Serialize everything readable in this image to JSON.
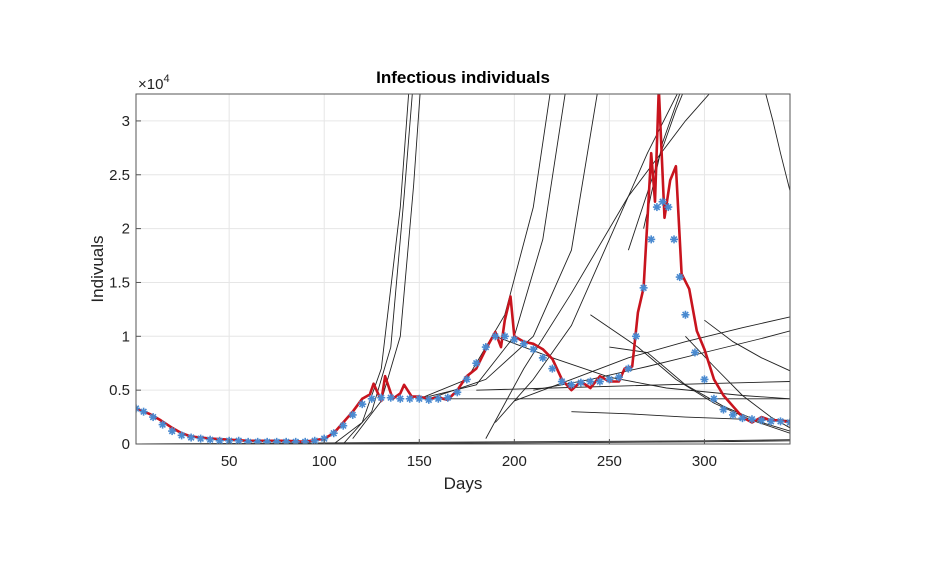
{
  "chart_data": {
    "type": "line",
    "title": "Infectious individuals",
    "xlabel": "Days",
    "ylabel": "Indivuals",
    "y_exponent_label": "×10",
    "y_exponent_power": "4",
    "xlim": [
      1,
      345
    ],
    "ylim": [
      0,
      3.25
    ],
    "x_ticks": [
      50,
      100,
      150,
      200,
      250,
      300
    ],
    "x_tick_labels": [
      "50",
      "100",
      "150",
      "200",
      "250",
      "300"
    ],
    "y_ticks": [
      0,
      0.5,
      1,
      1.5,
      2,
      2.5,
      3
    ],
    "y_tick_labels": [
      "0",
      "0.5",
      "1",
      "1.5",
      "2",
      "2.5",
      "3"
    ],
    "grid": true,
    "series": [
      {
        "style": "line",
        "color": "#c8141e",
        "x": [
          1,
          8,
          14,
          20,
          25,
          30,
          40,
          50,
          60,
          70,
          80,
          90,
          100,
          105,
          110,
          115,
          120,
          124,
          126,
          130,
          132,
          136,
          140,
          142,
          146,
          150,
          155,
          160,
          165,
          170,
          175,
          180,
          185,
          190,
          193,
          195,
          198,
          200,
          205,
          210,
          215,
          220,
          225,
          230,
          235,
          240,
          245,
          250,
          255,
          258,
          262,
          265,
          268,
          272,
          274,
          276,
          279,
          282,
          285,
          288,
          292,
          296,
          300,
          305,
          310,
          315,
          320,
          325,
          330,
          335,
          340,
          345
        ],
        "y": [
          0.33,
          0.28,
          0.22,
          0.15,
          0.1,
          0.07,
          0.05,
          0.04,
          0.03,
          0.03,
          0.03,
          0.02,
          0.05,
          0.1,
          0.2,
          0.3,
          0.42,
          0.46,
          0.56,
          0.4,
          0.63,
          0.42,
          0.47,
          0.55,
          0.44,
          0.44,
          0.42,
          0.43,
          0.41,
          0.5,
          0.63,
          0.7,
          0.88,
          1.04,
          0.9,
          1.15,
          1.37,
          1.0,
          0.95,
          0.93,
          0.88,
          0.79,
          0.6,
          0.5,
          0.58,
          0.52,
          0.63,
          0.58,
          0.58,
          0.7,
          0.72,
          1.22,
          1.45,
          2.7,
          2.25,
          3.3,
          2.1,
          2.45,
          2.58,
          1.58,
          1.44,
          1.05,
          0.88,
          0.6,
          0.45,
          0.35,
          0.25,
          0.2,
          0.25,
          0.22,
          0.22,
          0.2
        ]
      },
      {
        "style": "markers",
        "marker": "*",
        "color": "#4a8ad0",
        "x": [
          1,
          5,
          10,
          15,
          20,
          25,
          30,
          35,
          40,
          45,
          50,
          55,
          60,
          65,
          70,
          75,
          80,
          85,
          90,
          95,
          100,
          105,
          110,
          115,
          120,
          125,
          130,
          135,
          140,
          145,
          150,
          155,
          160,
          165,
          170,
          175,
          180,
          185,
          190,
          195,
          200,
          205,
          210,
          215,
          220,
          225,
          230,
          235,
          240,
          245,
          250,
          255,
          260,
          264,
          268,
          272,
          275,
          278,
          281,
          284,
          287,
          290,
          295,
          300,
          305,
          310,
          315,
          320,
          325,
          330,
          335,
          340,
          345
        ],
        "y": [
          0.33,
          0.3,
          0.25,
          0.18,
          0.12,
          0.08,
          0.06,
          0.05,
          0.04,
          0.03,
          0.03,
          0.03,
          0.02,
          0.02,
          0.02,
          0.02,
          0.02,
          0.02,
          0.02,
          0.03,
          0.05,
          0.1,
          0.17,
          0.27,
          0.37,
          0.42,
          0.43,
          0.43,
          0.42,
          0.42,
          0.42,
          0.41,
          0.42,
          0.43,
          0.48,
          0.6,
          0.75,
          0.9,
          1.0,
          1.0,
          0.97,
          0.93,
          0.88,
          0.8,
          0.7,
          0.58,
          0.55,
          0.57,
          0.58,
          0.58,
          0.6,
          0.62,
          0.7,
          1.0,
          1.45,
          1.9,
          2.2,
          2.25,
          2.2,
          1.9,
          1.55,
          1.2,
          0.85,
          0.6,
          0.42,
          0.32,
          0.27,
          0.24,
          0.23,
          0.22,
          0.21,
          0.21,
          0.2
        ]
      }
    ],
    "fitted_curves": {
      "color": "#222222",
      "note_free": true,
      "curves": [
        {
          "x": [
            105,
            120,
            130,
            140,
            145
          ],
          "y": [
            0.0,
            0.2,
            0.7,
            2.2,
            3.4
          ]
        },
        {
          "x": [
            110,
            125,
            135,
            142,
            147
          ],
          "y": [
            0.0,
            0.3,
            0.9,
            2.3,
            3.4
          ]
        },
        {
          "x": [
            115,
            130,
            140,
            147,
            151
          ],
          "y": [
            0.05,
            0.4,
            1.0,
            2.4,
            3.4
          ]
        },
        {
          "x": [
            150,
            175,
            195,
            210,
            220
          ],
          "y": [
            0.42,
            0.6,
            1.2,
            2.2,
            3.4
          ]
        },
        {
          "x": [
            150,
            180,
            200,
            215,
            228
          ],
          "y": [
            0.42,
            0.55,
            1.0,
            1.9,
            3.4
          ]
        },
        {
          "x": [
            155,
            185,
            210,
            230,
            245
          ],
          "y": [
            0.42,
            0.6,
            1.0,
            1.8,
            3.4
          ]
        },
        {
          "x": [
            190,
            210,
            230,
            250,
            270,
            290
          ],
          "y": [
            0.2,
            0.6,
            1.1,
            1.9,
            2.7,
            3.4
          ]
        },
        {
          "x": [
            185,
            205,
            230,
            260,
            290,
            310
          ],
          "y": [
            0.05,
            0.7,
            1.4,
            2.3,
            3.0,
            3.4
          ]
        },
        {
          "x": [
            200,
            230,
            260,
            290,
            320,
            345
          ],
          "y": [
            0.4,
            0.6,
            0.8,
            0.95,
            1.08,
            1.18
          ]
        },
        {
          "x": [
            210,
            240,
            270,
            300,
            330,
            345
          ],
          "y": [
            0.5,
            0.6,
            0.72,
            0.85,
            0.98,
            1.05
          ]
        },
        {
          "x": [
            190,
            220,
            250,
            280,
            320,
            345
          ],
          "y": [
            1.0,
            0.8,
            0.62,
            0.52,
            0.45,
            0.42
          ]
        },
        {
          "x": [
            180,
            220,
            260,
            300,
            345
          ],
          "y": [
            0.5,
            0.52,
            0.54,
            0.56,
            0.58
          ]
        },
        {
          "x": [
            150,
            200,
            250,
            300,
            345
          ],
          "y": [
            0.42,
            0.42,
            0.42,
            0.42,
            0.42
          ]
        },
        {
          "x": [
            250,
            270,
            290,
            310,
            330,
            345
          ],
          "y": [
            0.9,
            0.85,
            0.55,
            0.35,
            0.2,
            0.12
          ]
        },
        {
          "x": [
            240,
            265,
            285,
            305,
            325,
            345
          ],
          "y": [
            1.2,
            0.9,
            0.6,
            0.38,
            0.22,
            0.1
          ]
        },
        {
          "x": [
            300,
            315,
            330,
            345
          ],
          "y": [
            1.15,
            0.95,
            0.8,
            0.68
          ]
        },
        {
          "x": [
            290,
            305,
            320,
            335,
            345
          ],
          "y": [
            1.0,
            0.72,
            0.45,
            0.25,
            0.15
          ]
        },
        {
          "x": [
            260,
            275,
            285,
            292
          ],
          "y": [
            1.8,
            2.6,
            3.1,
            3.4
          ]
        },
        {
          "x": [
            268,
            278,
            286,
            290
          ],
          "y": [
            2.0,
            2.8,
            3.2,
            3.4
          ]
        },
        {
          "x": [
            330,
            336,
            340,
            345
          ],
          "y": [
            3.4,
            3.0,
            2.7,
            2.35
          ]
        },
        {
          "x": [
            230,
            260,
            290,
            320,
            345
          ],
          "y": [
            0.3,
            0.28,
            0.25,
            0.23,
            0.22
          ]
        },
        {
          "x": [
            1,
            100,
            200,
            300,
            345
          ],
          "y": [
            0.0,
            0.005,
            0.01,
            0.02,
            0.03
          ]
        },
        {
          "x": [
            1,
            100,
            200,
            300,
            345
          ],
          "y": [
            0.0,
            0.01,
            0.02,
            0.03,
            0.04
          ]
        }
      ]
    }
  }
}
